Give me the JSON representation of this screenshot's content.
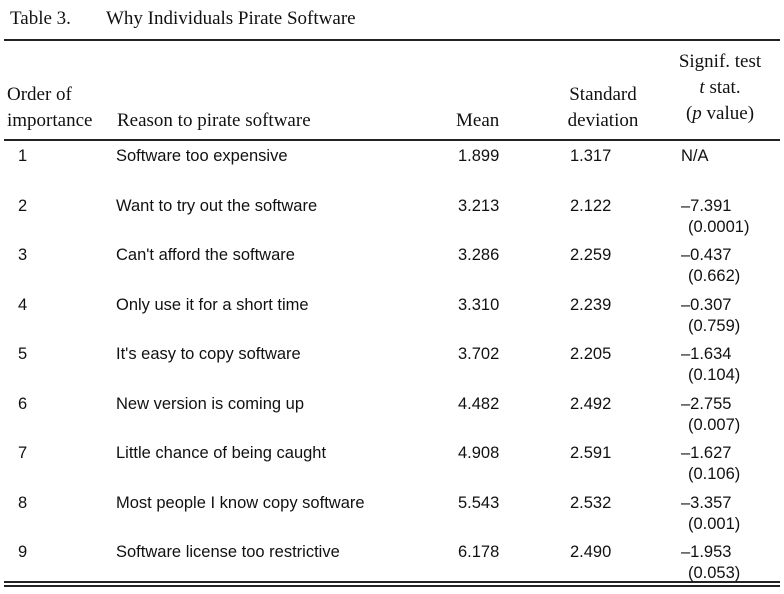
{
  "table": {
    "label": "Table 3.",
    "title": "Why Individuals Pirate Software",
    "headers": {
      "order_line1": "Order of",
      "order_line2": "importance",
      "reason": "Reason to pirate software",
      "mean": "Mean",
      "sd_line1": "Standard",
      "sd_line2": "deviation",
      "sig_line1": "Signif. test",
      "sig_line2_italic": "t",
      "sig_line2_rest": " stat.",
      "sig_line3_open": "(",
      "sig_line3_italic": "p",
      "sig_line3_rest": " value)"
    },
    "rows": [
      {
        "rank": "1",
        "reason": "Software too expensive",
        "mean": "1.899",
        "sd": "1.317",
        "t": "N/A",
        "p": ""
      },
      {
        "rank": "2",
        "reason": "Want to try out the software",
        "mean": "3.213",
        "sd": "2.122",
        "t": "–7.391",
        "p": "(0.0001)"
      },
      {
        "rank": "3",
        "reason": "Can't afford the software",
        "mean": "3.286",
        "sd": "2.259",
        "t": "–0.437",
        "p": "(0.662)"
      },
      {
        "rank": "4",
        "reason": "Only use it for a short time",
        "mean": "3.310",
        "sd": "2.239",
        "t": "–0.307",
        "p": "(0.759)"
      },
      {
        "rank": "5",
        "reason": "It's easy to copy software",
        "mean": "3.702",
        "sd": "2.205",
        "t": "–1.634",
        "p": "(0.104)"
      },
      {
        "rank": "6",
        "reason": "New version is coming up",
        "mean": "4.482",
        "sd": "2.492",
        "t": "–2.755",
        "p": "(0.007)"
      },
      {
        "rank": "7",
        "reason": "Little chance of being caught",
        "mean": "4.908",
        "sd": "2.591",
        "t": "–1.627",
        "p": "(0.106)"
      },
      {
        "rank": "8",
        "reason": "Most people I know copy software",
        "mean": "5.543",
        "sd": "2.532",
        "t": "–3.357",
        "p": "(0.001)"
      },
      {
        "rank": "9",
        "reason": "Software license too restrictive",
        "mean": "6.178",
        "sd": "2.490",
        "t": "–1.953",
        "p": "(0.053)"
      }
    ]
  }
}
